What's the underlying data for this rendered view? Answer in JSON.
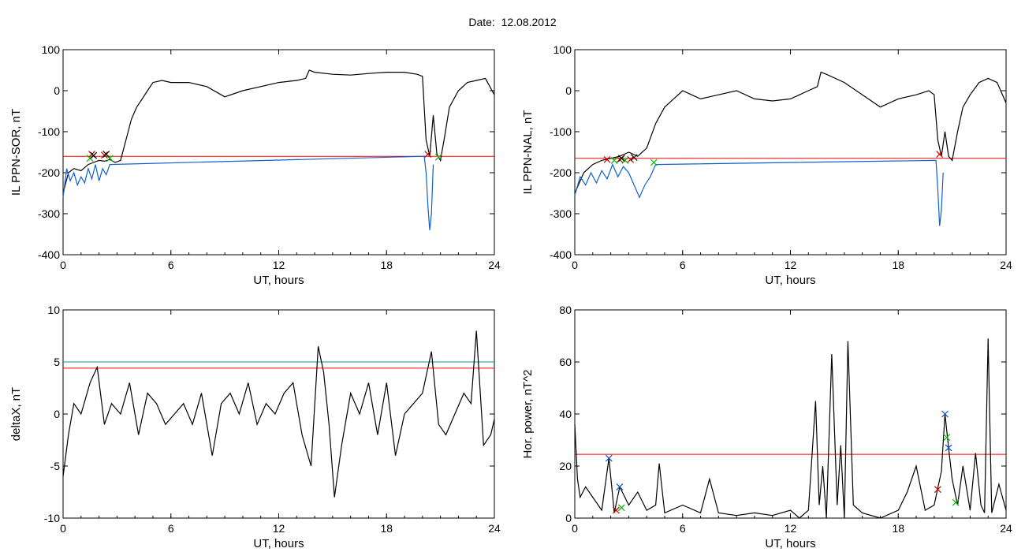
{
  "figure": {
    "title": "Date:  12.08.2012"
  },
  "chart_data": [
    {
      "type": "line",
      "ylabel": "IL PPN-SOR, nT",
      "xlabel": "UT, hours",
      "xlim": [
        0,
        24
      ],
      "ylim": [
        -400,
        100
      ],
      "xticks": [
        0,
        6,
        12,
        18,
        24
      ],
      "yticks": [
        -400,
        -300,
        -200,
        -100,
        0,
        100
      ],
      "threshold": {
        "value": -160,
        "color": "#ff0000"
      },
      "series": [
        {
          "color": "#000000",
          "x": [
            0,
            0.3,
            0.6,
            1.0,
            1.4,
            1.7,
            2.0,
            2.3,
            2.6,
            2.9,
            3.2,
            3.5,
            3.8,
            4.1,
            4.4,
            4.7,
            5.0,
            5.5,
            6.0,
            7.0,
            8.0,
            9.0,
            10.0,
            11.0,
            12.0,
            13.0,
            13.5,
            13.7,
            14.0,
            15.0,
            16.0,
            17.0,
            18.0,
            19.0,
            19.7,
            20.0,
            20.2,
            20.4,
            20.6,
            20.8,
            21.0,
            21.2,
            21.5,
            22.0,
            22.5,
            23.0,
            23.5,
            24.0
          ],
          "y": [
            -250,
            -200,
            -190,
            -195,
            -180,
            -175,
            -170,
            -172,
            -168,
            -175,
            -170,
            -120,
            -70,
            -40,
            -20,
            0,
            20,
            25,
            20,
            20,
            10,
            -15,
            0,
            10,
            20,
            25,
            30,
            50,
            45,
            40,
            38,
            42,
            45,
            45,
            40,
            35,
            -120,
            -160,
            -60,
            -155,
            -170,
            -120,
            -40,
            0,
            20,
            25,
            30,
            -10
          ]
        },
        {
          "color": "#1060d0",
          "x": [
            0,
            0.2,
            0.4,
            0.6,
            0.8,
            1.0,
            1.2,
            1.4,
            1.6,
            1.8,
            2.0,
            2.2,
            2.4,
            2.6,
            20.1,
            20.2,
            20.3,
            20.4,
            20.5,
            20.6
          ],
          "y": [
            -260,
            -190,
            -220,
            -200,
            -230,
            -210,
            -225,
            -190,
            -215,
            -180,
            -220,
            -190,
            -205,
            -180,
            -160,
            -200,
            -280,
            -340,
            -300,
            -180
          ]
        }
      ],
      "markers": [
        {
          "color": "#cc0000",
          "x": [
            1.6,
            2.3,
            20.3
          ],
          "y": [
            -155,
            -157,
            -155
          ]
        },
        {
          "color": "#00bb00",
          "x": [
            1.5,
            2.6,
            20.9
          ],
          "y": [
            -165,
            -165,
            -162
          ]
        },
        {
          "color": "#000000",
          "x": [
            1.7,
            2.4
          ],
          "y": [
            -158,
            -155
          ]
        }
      ]
    },
    {
      "type": "line",
      "ylabel": "IL PPN-NAL, nT",
      "xlabel": "UT, hours",
      "xlim": [
        0,
        24
      ],
      "ylim": [
        -400,
        100
      ],
      "xticks": [
        0,
        6,
        12,
        18,
        24
      ],
      "yticks": [
        -400,
        -300,
        -200,
        -100,
        0,
        100
      ],
      "threshold": {
        "value": -165,
        "color": "#ff0000"
      },
      "series": [
        {
          "color": "#000000",
          "x": [
            0,
            0.5,
            1.0,
            1.5,
            2.0,
            2.5,
            3.0,
            3.5,
            4.0,
            4.5,
            5.0,
            5.5,
            6.0,
            6.5,
            7.0,
            8.0,
            9.0,
            10.0,
            11.0,
            12.0,
            13.0,
            13.5,
            13.7,
            14.0,
            15.0,
            16.0,
            17.0,
            18.0,
            19.0,
            19.7,
            20.0,
            20.2,
            20.4,
            20.6,
            20.8,
            21.0,
            21.3,
            21.6,
            22.0,
            22.5,
            23.0,
            23.5,
            24.0
          ],
          "y": [
            -250,
            -200,
            -180,
            -170,
            -165,
            -160,
            -150,
            -160,
            -140,
            -80,
            -40,
            -20,
            0,
            -10,
            -20,
            -10,
            0,
            -20,
            -25,
            -20,
            0,
            10,
            45,
            40,
            20,
            -10,
            -40,
            -20,
            -10,
            0,
            -10,
            -120,
            -160,
            -100,
            -160,
            -170,
            -100,
            -40,
            -10,
            20,
            30,
            20,
            -30
          ]
        },
        {
          "color": "#1060d0",
          "x": [
            0,
            0.3,
            0.6,
            0.9,
            1.2,
            1.5,
            1.8,
            2.1,
            2.4,
            2.7,
            3.0,
            3.3,
            3.6,
            3.9,
            4.2,
            4.5,
            20.1,
            20.2,
            20.3,
            20.4,
            20.5
          ],
          "y": [
            -255,
            -210,
            -230,
            -200,
            -225,
            -195,
            -215,
            -180,
            -210,
            -185,
            -200,
            -230,
            -260,
            -230,
            -210,
            -180,
            -170,
            -240,
            -330,
            -290,
            -200
          ]
        }
      ],
      "markers": [
        {
          "color": "#cc0000",
          "x": [
            1.8,
            2.5,
            3.1,
            20.3
          ],
          "y": [
            -168,
            -168,
            -168,
            -155
          ]
        },
        {
          "color": "#00bb00",
          "x": [
            2.2,
            2.8,
            4.4
          ],
          "y": [
            -170,
            -170,
            -175
          ]
        },
        {
          "color": "#000000",
          "x": [
            2.6,
            3.3
          ],
          "y": [
            -165,
            -163
          ]
        }
      ]
    },
    {
      "type": "line",
      "ylabel": "deltaX, nT",
      "xlabel": "UT, hours",
      "xlim": [
        0,
        24
      ],
      "ylim": [
        -10,
        10
      ],
      "xticks": [
        0,
        6,
        12,
        18,
        24
      ],
      "yticks": [
        -10,
        -5,
        0,
        5,
        10
      ],
      "thresholds": [
        {
          "value": 5.0,
          "color": "#009999"
        },
        {
          "value": 4.4,
          "color": "#ff0000"
        }
      ],
      "series": [
        {
          "color": "#000000",
          "x": [
            0,
            0.3,
            0.6,
            1.0,
            1.5,
            1.9,
            2.3,
            2.7,
            3.2,
            3.7,
            4.2,
            4.7,
            5.2,
            5.7,
            6.2,
            6.7,
            7.2,
            7.7,
            8.3,
            8.8,
            9.3,
            9.8,
            10.3,
            10.8,
            11.3,
            11.8,
            12.3,
            12.8,
            13.3,
            13.8,
            14.2,
            14.5,
            14.8,
            15.1,
            15.5,
            16.0,
            16.5,
            17.0,
            17.5,
            18.0,
            18.5,
            19.0,
            19.5,
            20.0,
            20.5,
            20.9,
            21.3,
            21.8,
            22.3,
            22.7,
            23.0,
            23.4,
            23.8,
            24.0
          ],
          "y": [
            -6,
            -2,
            1,
            0,
            3,
            4.5,
            -1,
            1,
            0,
            3,
            -2,
            2,
            1,
            -1,
            0,
            1,
            -1,
            2,
            -4,
            1,
            2,
            0,
            3,
            -1,
            1,
            0,
            2,
            3,
            -2,
            -5,
            6.5,
            4,
            -1,
            -8,
            -3,
            2,
            0,
            3,
            -2,
            3,
            -4,
            0,
            1,
            2,
            6,
            -1,
            -2,
            0,
            2,
            1,
            8,
            -3,
            -2,
            -0.5
          ]
        }
      ]
    },
    {
      "type": "line",
      "ylabel": "Hor. power, nT^2",
      "xlabel": "UT, hours",
      "xlim": [
        0,
        24
      ],
      "ylim": [
        0,
        80
      ],
      "xticks": [
        0,
        6,
        12,
        18,
        24
      ],
      "yticks": [
        0,
        20,
        40,
        60,
        80
      ],
      "threshold": {
        "value": 24.5,
        "color": "#ff0000"
      },
      "series": [
        {
          "color": "#000000",
          "x": [
            0,
            0.15,
            0.3,
            0.6,
            1.0,
            1.5,
            1.9,
            2.2,
            2.5,
            3.0,
            3.5,
            4.0,
            4.5,
            4.7,
            5.0,
            6.0,
            7.0,
            7.5,
            8.0,
            9.0,
            10.0,
            11.0,
            12.0,
            12.5,
            13.0,
            13.4,
            13.6,
            13.8,
            14.0,
            14.3,
            14.6,
            14.8,
            15.0,
            15.2,
            15.5,
            16.0,
            17.0,
            18.0,
            18.5,
            19.0,
            19.5,
            20.0,
            20.4,
            20.6,
            20.8,
            21.0,
            21.3,
            21.6,
            22.0,
            22.3,
            22.6,
            22.8,
            23.0,
            23.2,
            23.6,
            24.0
          ],
          "y": [
            36,
            15,
            8,
            12,
            8,
            3,
            23,
            2,
            12,
            5,
            10,
            3,
            5,
            21,
            2,
            5,
            2,
            15,
            2,
            1,
            2,
            1,
            3,
            0,
            3,
            45,
            5,
            20,
            0,
            63,
            5,
            28,
            0,
            68,
            5,
            2,
            0,
            3,
            10,
            20,
            3,
            5,
            18,
            40,
            27,
            15,
            5,
            20,
            3,
            25,
            5,
            2,
            69,
            2,
            13,
            3
          ]
        }
      ],
      "markers": [
        {
          "color": "#0055cc",
          "x": [
            1.9,
            2.5,
            20.6,
            20.8
          ],
          "y": [
            23,
            12,
            40,
            27
          ]
        },
        {
          "color": "#00bb00",
          "x": [
            2.6,
            20.7,
            21.2
          ],
          "y": [
            4,
            31,
            6
          ]
        },
        {
          "color": "#cc0000",
          "x": [
            2.3,
            20.2
          ],
          "y": [
            3,
            11
          ]
        }
      ]
    }
  ]
}
